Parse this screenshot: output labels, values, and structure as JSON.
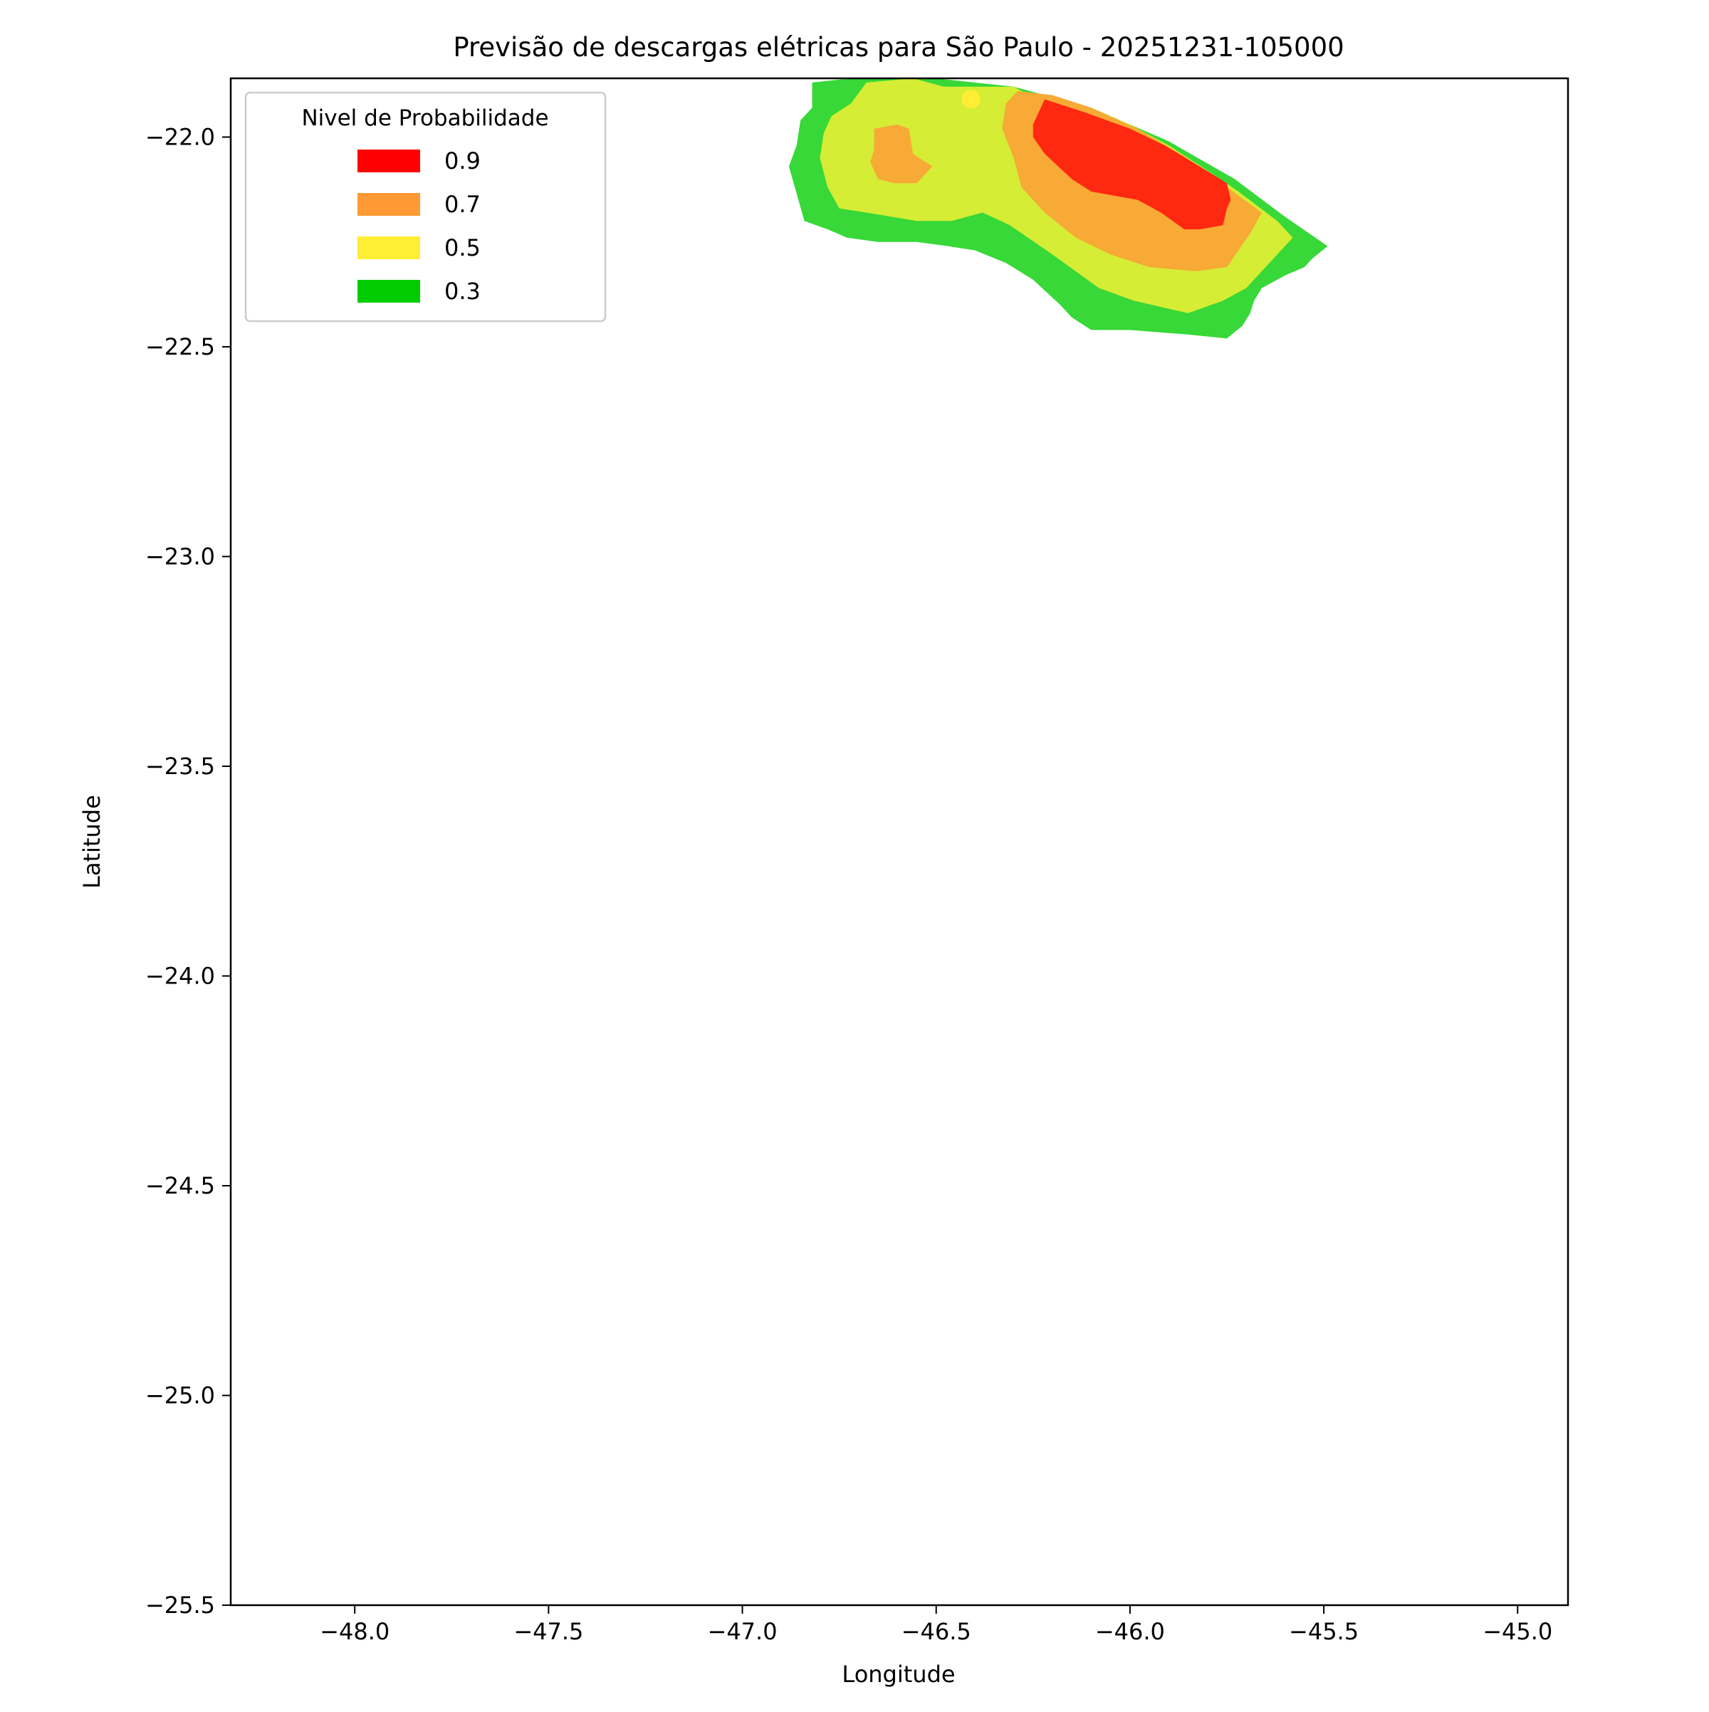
{
  "chart_data": {
    "type": "heatmap",
    "title": "Previsão de descargas elétricas para São Paulo - 20251231-105000",
    "xlabel": "Longitude",
    "ylabel": "Latitude",
    "xlim": [
      -48.32,
      -44.87
    ],
    "ylim": [
      -25.5,
      -21.86
    ],
    "xticks": [
      -48.0,
      -47.5,
      -47.0,
      -46.5,
      -46.0,
      -45.5,
      -45.0
    ],
    "xtick_labels": [
      "−48.0",
      "−47.5",
      "−47.0",
      "−46.5",
      "−46.0",
      "−45.5",
      "−45.0"
    ],
    "yticks": [
      -22.0,
      -22.5,
      -23.0,
      -23.5,
      -24.0,
      -24.5,
      -25.0,
      -25.5
    ],
    "ytick_labels": [
      "−22.0",
      "−22.5",
      "−23.0",
      "−23.5",
      "−24.0",
      "−24.5",
      "−25.0",
      "−25.5"
    ],
    "grid": false,
    "legend": {
      "title": "Nivel de Probabilidade",
      "placement": "upper left",
      "entries": [
        {
          "label": "0.9",
          "color": "#ff0000"
        },
        {
          "label": "0.7",
          "color": "#ff9933"
        },
        {
          "label": "0.5",
          "color": "#ffee33"
        },
        {
          "label": "0.3",
          "color": "#00cc00"
        }
      ]
    },
    "levels": [
      {
        "level": 0.3,
        "color": "#37d837",
        "polygons": [
          [
            [
              -46.72,
              -21.86
            ],
            [
              -46.5,
              -21.86
            ],
            [
              -46.3,
              -21.88
            ],
            [
              -46.1,
              -21.93
            ],
            [
              -45.9,
              -22.01
            ],
            [
              -45.73,
              -22.1
            ],
            [
              -45.6,
              -22.19
            ],
            [
              -45.49,
              -22.26
            ],
            [
              -45.53,
              -22.29
            ],
            [
              -45.55,
              -22.31
            ],
            [
              -45.6,
              -22.33
            ],
            [
              -45.66,
              -22.36
            ],
            [
              -45.68,
              -22.39
            ],
            [
              -45.69,
              -22.42
            ],
            [
              -45.71,
              -22.45
            ],
            [
              -45.75,
              -22.48
            ],
            [
              -45.86,
              -22.47
            ],
            [
              -46.0,
              -22.46
            ],
            [
              -46.1,
              -22.46
            ],
            [
              -46.15,
              -22.43
            ],
            [
              -46.18,
              -22.4
            ],
            [
              -46.25,
              -22.34
            ],
            [
              -46.32,
              -22.3
            ],
            [
              -46.4,
              -22.27
            ],
            [
              -46.47,
              -22.26
            ],
            [
              -46.55,
              -22.25
            ],
            [
              -46.65,
              -22.25
            ],
            [
              -46.73,
              -22.24
            ],
            [
              -46.78,
              -22.22
            ],
            [
              -46.84,
              -22.2
            ],
            [
              -46.88,
              -22.07
            ],
            [
              -46.86,
              -22.02
            ],
            [
              -46.85,
              -21.96
            ],
            [
              -46.82,
              -21.93
            ],
            [
              -46.82,
              -21.87
            ]
          ]
        ]
      },
      {
        "level": 0.5,
        "color": "#d5ed35",
        "polygons": [
          [
            [
              -46.68,
              -21.87
            ],
            [
              -46.56,
              -21.86
            ],
            [
              -46.48,
              -21.88
            ],
            [
              -46.3,
              -21.88
            ],
            [
              -46.2,
              -21.93
            ],
            [
              -46.1,
              -21.93
            ],
            [
              -46.0,
              -21.97
            ],
            [
              -45.9,
              -22.02
            ],
            [
              -45.8,
              -22.08
            ],
            [
              -45.72,
              -22.13
            ],
            [
              -45.62,
              -22.2
            ],
            [
              -45.58,
              -22.24
            ],
            [
              -45.63,
              -22.29
            ],
            [
              -45.67,
              -22.33
            ],
            [
              -45.7,
              -22.36
            ],
            [
              -45.76,
              -22.39
            ],
            [
              -45.85,
              -22.42
            ],
            [
              -45.99,
              -22.39
            ],
            [
              -46.08,
              -22.36
            ],
            [
              -46.2,
              -22.28
            ],
            [
              -46.31,
              -22.21
            ],
            [
              -46.38,
              -22.18
            ],
            [
              -46.46,
              -22.2
            ],
            [
              -46.55,
              -22.2
            ],
            [
              -46.68,
              -22.18
            ],
            [
              -46.75,
              -22.17
            ],
            [
              -46.78,
              -22.12
            ],
            [
              -46.8,
              -22.05
            ],
            [
              -46.79,
              -21.99
            ],
            [
              -46.77,
              -21.95
            ],
            [
              -46.72,
              -21.92
            ]
          ]
        ]
      },
      {
        "level": 0.7,
        "color": "#f7aa35",
        "polygons": [
          [
            [
              -46.29,
              -21.89
            ],
            [
              -46.2,
              -21.9
            ],
            [
              -46.1,
              -21.93
            ],
            [
              -45.98,
              -21.98
            ],
            [
              -45.87,
              -22.04
            ],
            [
              -45.79,
              -22.09
            ],
            [
              -45.72,
              -22.14
            ],
            [
              -45.66,
              -22.18
            ],
            [
              -45.69,
              -22.23
            ],
            [
              -45.72,
              -22.27
            ],
            [
              -45.75,
              -22.31
            ],
            [
              -45.83,
              -22.32
            ],
            [
              -45.95,
              -22.31
            ],
            [
              -46.05,
              -22.28
            ],
            [
              -46.14,
              -22.24
            ],
            [
              -46.22,
              -22.18
            ],
            [
              -46.28,
              -22.12
            ],
            [
              -46.3,
              -22.05
            ],
            [
              -46.33,
              -21.98
            ],
            [
              -46.32,
              -21.92
            ]
          ],
          [
            [
              -46.66,
              -21.98
            ],
            [
              -46.6,
              -21.97
            ],
            [
              -46.57,
              -21.98
            ],
            [
              -46.56,
              -22.04
            ],
            [
              -46.51,
              -22.07
            ],
            [
              -46.55,
              -22.11
            ],
            [
              -46.61,
              -22.11
            ],
            [
              -46.65,
              -22.1
            ],
            [
              -46.67,
              -22.06
            ],
            [
              -46.66,
              -22.03
            ]
          ]
        ]
      },
      {
        "level": 0.9,
        "color": "#ff2810",
        "polygons": [
          [
            [
              -46.22,
              -21.91
            ],
            [
              -46.12,
              -21.94
            ],
            [
              -46.0,
              -21.98
            ],
            [
              -45.91,
              -22.02
            ],
            [
              -45.82,
              -22.07
            ],
            [
              -45.75,
              -22.11
            ],
            [
              -45.74,
              -22.15
            ],
            [
              -45.75,
              -22.17
            ],
            [
              -45.76,
              -22.21
            ],
            [
              -45.82,
              -22.22
            ],
            [
              -45.86,
              -22.22
            ],
            [
              -45.92,
              -22.18
            ],
            [
              -45.98,
              -22.15
            ],
            [
              -46.04,
              -22.14
            ],
            [
              -46.1,
              -22.13
            ],
            [
              -46.15,
              -22.1
            ],
            [
              -46.22,
              -22.04
            ],
            [
              -46.25,
              -22.0
            ],
            [
              -46.25,
              -21.97
            ]
          ]
        ]
      }
    ],
    "points": [
      {
        "lon": -46.41,
        "lat": -21.91,
        "color": "#ffee33"
      }
    ]
  }
}
